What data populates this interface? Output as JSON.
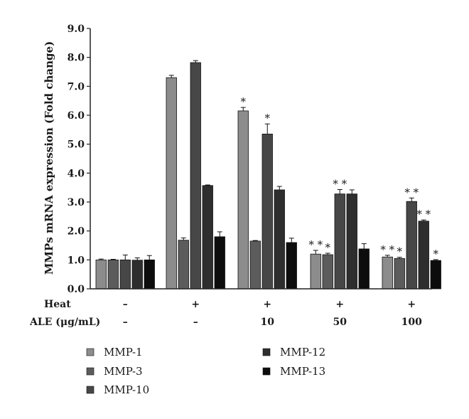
{
  "chart_data": {
    "type": "bar",
    "title": "",
    "xlabel": "",
    "ylabel": "MMPs mRNA expression (Fold change)",
    "ylim": [
      0,
      9
    ],
    "yticks": [
      "0.0",
      "1.0",
      "2.0",
      "3.0",
      "4.0",
      "5.0",
      "6.0",
      "7.0",
      "8.0",
      "9.0"
    ],
    "conditions": {
      "heat_label": "Heat",
      "ale_label": "ALE (μg/mL)",
      "heat": [
        "–",
        "+",
        "+",
        "+",
        "+"
      ],
      "ale": [
        "–",
        "–",
        "10",
        "50",
        "100"
      ]
    },
    "series": [
      {
        "name": "MMP-1",
        "color": "#8c8c8c",
        "values": [
          1.0,
          7.3,
          6.15,
          1.2,
          1.1
        ],
        "errors": [
          0.03,
          0.08,
          0.12,
          0.13,
          0.06
        ],
        "stars": [
          "",
          "",
          "*",
          "**",
          "**"
        ]
      },
      {
        "name": "MMP-3",
        "color": "#5c5c5c",
        "values": [
          1.0,
          1.68,
          1.65,
          1.18,
          1.05
        ],
        "errors": [
          0.02,
          0.08,
          0.02,
          0.05,
          0.04
        ],
        "stars": [
          "",
          "",
          "",
          "*",
          "*"
        ]
      },
      {
        "name": "MMP-10",
        "color": "#474747",
        "values": [
          1.0,
          7.82,
          5.35,
          3.28,
          3.02
        ],
        "errors": [
          0.17,
          0.07,
          0.35,
          0.15,
          0.12
        ],
        "stars": [
          "",
          "",
          "*",
          "**",
          "**"
        ]
      },
      {
        "name": "MMP-12",
        "color": "#2e2e2e",
        "values": [
          0.99,
          3.57,
          3.42,
          3.28,
          2.34
        ],
        "errors": [
          0.08,
          0.02,
          0.12,
          0.14,
          0.04
        ],
        "stars": [
          "",
          "",
          "",
          "",
          "**"
        ]
      },
      {
        "name": "MMP-13",
        "color": "#0d0d0d",
        "values": [
          1.0,
          1.8,
          1.6,
          1.38,
          0.98
        ],
        "errors": [
          0.15,
          0.17,
          0.15,
          0.18,
          0.03
        ],
        "stars": [
          "",
          "",
          "",
          "",
          "*"
        ]
      }
    ],
    "legend_placement": "bottom",
    "grid": false
  }
}
